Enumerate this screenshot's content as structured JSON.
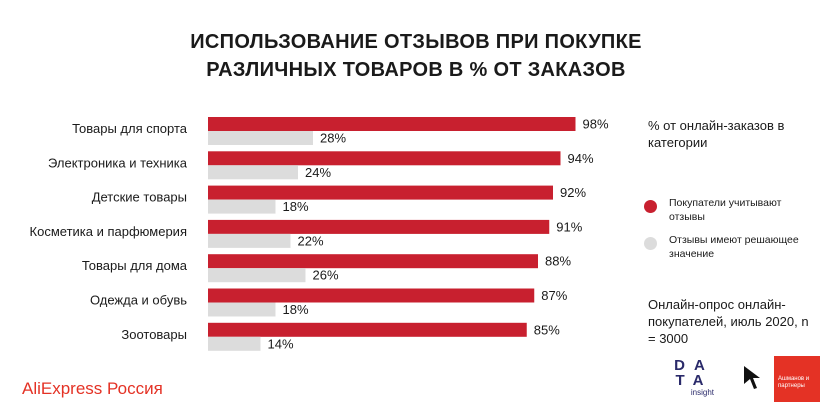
{
  "title_line1": "ИСПОЛЬЗОВАНИЕ ОТЗЫВОВ ПРИ ПОКУПКЕ",
  "title_line2": "РАЗЛИЧНЫХ ТОВАРОВ В % ОТ ЗАКАЗОВ",
  "legend": {
    "title": "% от онлайн-заказов в категории",
    "items": [
      {
        "label": "Покупатели учитывают отзывы",
        "color": "#c8202f"
      },
      {
        "label": "Отзывы имеют решающее значение",
        "color": "#dcdcdc"
      }
    ]
  },
  "note": "Онлайн-опрос онлайн-покупателей, июль 2020, n = 3000",
  "brand": "AliExpress Россия",
  "logo_data": {
    "line1": "DA",
    "line2": "TA",
    "line3": "insight"
  },
  "logo_red": "Ашманов и партнеры",
  "chart_data": {
    "type": "bar",
    "orientation": "horizontal",
    "categories": [
      "Товары для спорта",
      "Электроника и техника",
      "Детские товары",
      "Косметика и парфюмерия",
      "Товары для дома",
      "Одежда и обувь",
      "Зоотовары"
    ],
    "series": [
      {
        "name": "Покупатели учитывают отзывы",
        "color": "#c8202f",
        "values": [
          98,
          94,
          92,
          91,
          88,
          87,
          85
        ]
      },
      {
        "name": "Отзывы имеют решающее значение",
        "color": "#dcdcdc",
        "values": [
          28,
          24,
          18,
          22,
          26,
          18,
          14
        ]
      }
    ],
    "value_suffix": "%",
    "xlim": [
      0,
      100
    ],
    "grid": false,
    "legend_position": "right"
  }
}
